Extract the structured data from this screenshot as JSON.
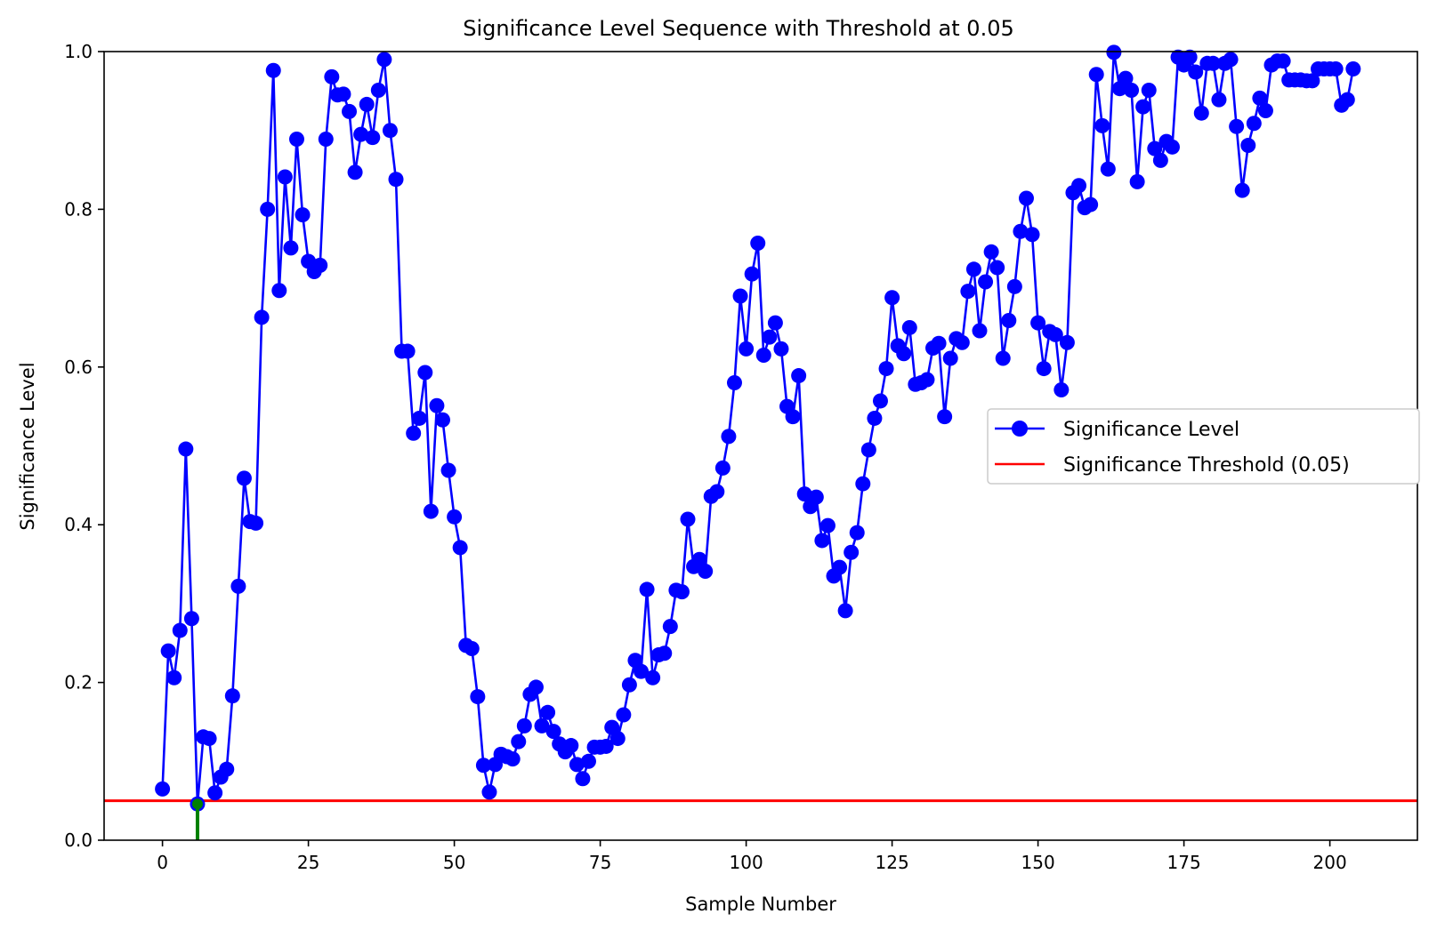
{
  "chart_data": {
    "type": "line",
    "title": "Significance Level Sequence with Threshold at 0.05",
    "xlabel": "Sample Number",
    "ylabel": "Significance Level",
    "xlim": [
      -10,
      215
    ],
    "ylim": [
      0.0,
      1.0
    ],
    "xticks": [
      0,
      25,
      50,
      75,
      100,
      125,
      150,
      175,
      200
    ],
    "xtick_labels": [
      "0",
      "25",
      "50",
      "75",
      "100",
      "125",
      "150",
      "175",
      "200"
    ],
    "yticks": [
      0.0,
      0.2,
      0.4,
      0.6,
      0.8,
      1.0
    ],
    "ytick_labels": [
      "0.0",
      "0.2",
      "0.4",
      "0.6",
      "0.8",
      "1.0"
    ],
    "grid": false,
    "legend": {
      "placement": "center-right",
      "entries": [
        "Significance Level",
        "Significance Threshold (0.05)"
      ]
    },
    "series": [
      {
        "name": "Significance Level",
        "color": "#0000ff",
        "marker": "circle",
        "y": [
          0.065,
          0.24,
          0.206,
          0.266,
          0.496,
          0.281,
          0.046,
          0.131,
          0.129,
          0.06,
          0.08,
          0.09,
          0.183,
          0.322,
          0.459,
          0.404,
          0.402,
          0.663,
          0.8,
          0.976,
          0.697,
          0.841,
          0.751,
          0.889,
          0.793,
          0.734,
          0.721,
          0.729,
          0.889,
          0.968,
          0.945,
          0.946,
          0.924,
          0.847,
          0.895,
          0.933,
          0.891,
          0.951,
          0.99,
          0.9,
          0.838,
          0.62,
          0.62,
          0.516,
          0.535,
          0.593,
          0.417,
          0.551,
          0.533,
          0.469,
          0.41,
          0.371,
          0.247,
          0.243,
          0.182,
          0.095,
          0.061,
          0.096,
          0.109,
          0.106,
          0.103,
          0.125,
          0.145,
          0.185,
          0.194,
          0.145,
          0.162,
          0.138,
          0.122,
          0.112,
          0.12,
          0.096,
          0.078,
          0.1,
          0.118,
          0.118,
          0.119,
          0.143,
          0.129,
          0.159,
          0.197,
          0.228,
          0.214,
          0.318,
          0.206,
          0.235,
          0.237,
          0.271,
          0.317,
          0.315,
          0.407,
          0.347,
          0.356,
          0.341,
          0.436,
          0.442,
          0.472,
          0.512,
          0.58,
          0.69,
          0.623,
          0.718,
          0.757,
          0.615,
          0.638,
          0.656,
          0.623,
          0.55,
          0.537,
          0.589,
          0.439,
          0.423,
          0.435,
          0.38,
          0.399,
          0.335,
          0.346,
          0.291,
          0.365,
          0.39,
          0.452,
          0.495,
          0.535,
          0.557,
          0.598,
          0.688,
          0.627,
          0.617,
          0.65,
          0.578,
          0.58,
          0.584,
          0.624,
          0.63,
          0.537,
          0.611,
          0.636,
          0.631,
          0.696,
          0.724,
          0.646,
          0.708,
          0.746,
          0.726,
          0.611,
          0.659,
          0.702,
          0.772,
          0.814,
          0.768,
          0.656,
          0.598,
          0.645,
          0.641,
          0.571,
          0.631,
          0.821,
          0.83,
          0.802,
          0.806,
          0.971,
          0.906,
          0.851,
          0.999,
          0.953,
          0.966,
          0.951,
          0.835,
          0.93,
          0.951,
          0.877,
          0.862,
          0.886,
          0.879,
          0.993,
          0.983,
          0.993,
          0.974,
          0.922,
          0.985,
          0.985,
          0.939,
          0.985,
          0.99,
          0.905,
          0.824,
          0.881,
          0.909,
          0.941,
          0.925,
          0.983,
          0.988,
          0.988,
          0.964,
          0.964,
          0.964,
          0.963,
          0.963,
          0.978,
          0.978,
          0.978,
          0.978,
          0.932,
          0.939,
          0.978
        ]
      },
      {
        "name": "Significance Threshold (0.05)",
        "color": "#ff0000",
        "type": "hline",
        "y": 0.05
      }
    ],
    "highlight": {
      "color": "#008000",
      "x": 6,
      "y": 0.046
    }
  }
}
